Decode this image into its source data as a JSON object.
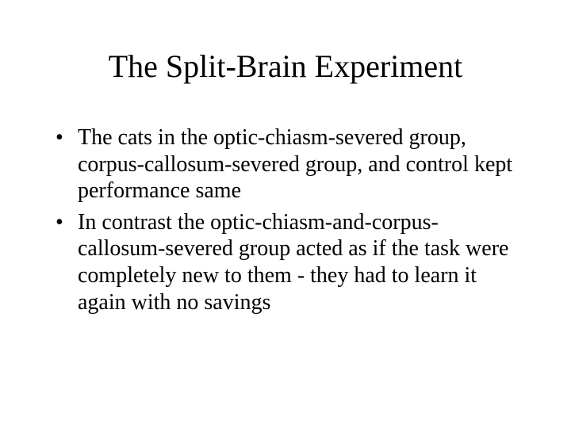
{
  "slide": {
    "title": "The Split-Brain Experiment",
    "bullets": [
      "The cats in the optic-chiasm-severed group, corpus-callosum-severed group, and control kept performance same",
      "In contrast the optic-chiasm-and-corpus-callosum-severed group acted as if the task were completely new to them - they had to learn it again with no savings"
    ],
    "title_fontsize": 40,
    "body_fontsize": 28,
    "font_family": "Times New Roman",
    "text_color": "#000000",
    "background_color": "#ffffff"
  }
}
